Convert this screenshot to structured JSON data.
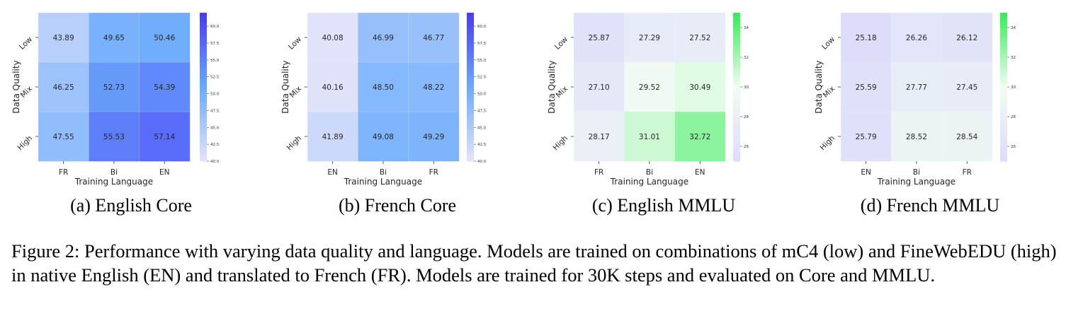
{
  "figure": {
    "caption": "Figure 2: Performance with varying data quality and language. Models are trained on combinations of mC4 (low) and FineWebEDU (high) in native English (EN) and translated to French (FR). Models are trained for 30K steps and evaluated on Core and MMLU."
  },
  "chart_data": [
    {
      "type": "heatmap",
      "subcaption": "(a) English Core",
      "xlabel": "Training Language",
      "ylabel": "Data Quality",
      "x_categories": [
        "FR",
        "Bi",
        "EN"
      ],
      "y_categories": [
        "Low",
        "Mix",
        "High"
      ],
      "values": [
        [
          43.89,
          49.65,
          50.46
        ],
        [
          46.25,
          52.73,
          54.39
        ],
        [
          47.55,
          55.53,
          57.14
        ]
      ],
      "colorbar": {
        "min": 40.0,
        "max": 62.0,
        "ticks": [
          "40.0",
          "42.5",
          "45.0",
          "47.5",
          "50.0",
          "52.5",
          "55.0",
          "57.5",
          "60.0"
        ]
      },
      "colormap": {
        "low": "#e2e3fb",
        "mid": "#6aabfc",
        "high": "#4b3cf8"
      }
    },
    {
      "type": "heatmap",
      "subcaption": "(b) French Core",
      "xlabel": "Training Language",
      "ylabel": "Data Quality",
      "x_categories": [
        "EN",
        "Bi",
        "FR"
      ],
      "y_categories": [
        "Low",
        "Mix",
        "High"
      ],
      "values": [
        [
          40.08,
          46.99,
          46.77
        ],
        [
          40.16,
          48.5,
          48.22
        ],
        [
          41.89,
          49.08,
          49.29
        ]
      ],
      "colorbar": {
        "min": 40.0,
        "max": 62.0,
        "ticks": [
          "40.0",
          "42.5",
          "45.0",
          "47.5",
          "50.0",
          "52.5",
          "55.0",
          "57.5",
          "60.0"
        ]
      },
      "colormap": {
        "low": "#e2e3fb",
        "mid": "#6aabfc",
        "high": "#4b3cf8"
      }
    },
    {
      "type": "heatmap",
      "subcaption": "(c) English MMLU",
      "xlabel": "Training Language",
      "ylabel": "Data Quality",
      "x_categories": [
        "FR",
        "Bi",
        "EN"
      ],
      "y_categories": [
        "Low",
        "Mix",
        "High"
      ],
      "values": [
        [
          25.87,
          27.29,
          27.52
        ],
        [
          27.1,
          29.52,
          30.49
        ],
        [
          28.17,
          31.01,
          32.72
        ]
      ],
      "colorbar": {
        "min": 25.0,
        "max": 35.0,
        "ticks": [
          "26",
          "28",
          "30",
          "32",
          "34"
        ]
      },
      "colormap": {
        "low": "#dcdcfb",
        "mid": "#f2fcf2",
        "high": "#36ee5a"
      }
    },
    {
      "type": "heatmap",
      "subcaption": "(d) French MMLU",
      "xlabel": "Training Language",
      "ylabel": "Data Quality",
      "x_categories": [
        "EN",
        "Bi",
        "FR"
      ],
      "y_categories": [
        "Low",
        "Mix",
        "High"
      ],
      "values": [
        [
          25.18,
          26.26,
          26.12
        ],
        [
          25.59,
          27.77,
          27.45
        ],
        [
          25.79,
          28.52,
          28.54
        ]
      ],
      "colorbar": {
        "min": 25.0,
        "max": 35.0,
        "ticks": [
          "26",
          "28",
          "30",
          "32",
          "34"
        ]
      },
      "colormap": {
        "low": "#dcdcfb",
        "mid": "#f2fcf2",
        "high": "#36ee5a"
      }
    }
  ]
}
